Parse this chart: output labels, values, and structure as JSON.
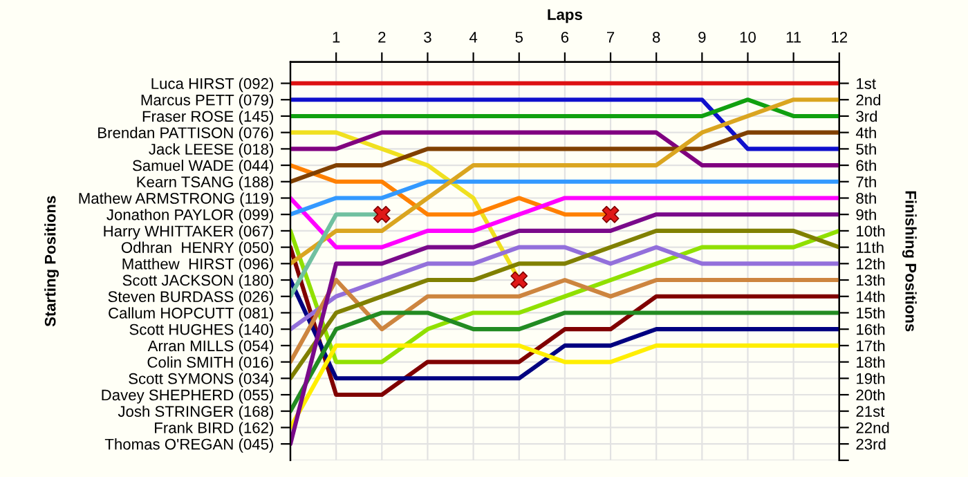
{
  "chart_data": {
    "type": "line",
    "xlabel": "Laps",
    "ylabel": "Finishing Positions",
    "x": [
      0,
      1,
      2,
      3,
      4,
      5,
      6,
      7,
      8,
      9,
      10,
      11,
      12
    ],
    "xlim": [
      0,
      12
    ],
    "xticks": [
      1,
      2,
      3,
      4,
      5,
      6,
      7,
      8,
      9,
      10,
      11,
      12
    ],
    "ylim": [
      24,
      -0.3
    ],
    "annotations": [
      "Starting Positions",
      "Luca HIRST (092)",
      "Marcus PETT (079)",
      "Fraser ROSE (145)",
      "Brendan PATTISON (076)",
      "Jack LEESE (018)",
      "Samuel WADE (044)",
      "Kearn TSANG (188)",
      "Mathew ARMSTRONG (119)",
      "Jonathon PAYLOR (099)",
      "Harry WHITTAKER (067)",
      "Odhran  HENRY (050)",
      "Matthew  HIRST (096)",
      "Scott JACKSON (180)",
      "Steven BURDASS (026)",
      "Callum HOPCUTT (081)",
      "Scott HUGHES (140)",
      "Arran MILLS (054)",
      "Colin SMITH (016)",
      "Scott SYMONS (034)",
      "Davey SHEPHERD (055)",
      "Josh STRINGER (168)",
      "Frank BIRD (162)",
      "Thomas O'REGAN (045)"
    ],
    "yticks": [
      {
        "value": 1,
        "label": "1st"
      },
      {
        "value": 2,
        "label": "2nd"
      },
      {
        "value": 3,
        "label": "3rd"
      },
      {
        "value": 4,
        "label": "4th"
      },
      {
        "value": 5,
        "label": "5th"
      },
      {
        "value": 6,
        "label": "6th"
      },
      {
        "value": 7,
        "label": "7th"
      },
      {
        "value": 8,
        "label": "8th"
      },
      {
        "value": 9,
        "label": "9th"
      },
      {
        "value": 10,
        "label": "10th"
      },
      {
        "value": 11,
        "label": "11th"
      },
      {
        "value": 12,
        "label": "12th"
      },
      {
        "value": 13,
        "label": "13th"
      },
      {
        "value": 14,
        "label": "14th"
      },
      {
        "value": 15,
        "label": "15th"
      },
      {
        "value": 16,
        "label": "16th"
      },
      {
        "value": 17,
        "label": "17th"
      },
      {
        "value": 18,
        "label": "18th"
      },
      {
        "value": 19,
        "label": "19th"
      },
      {
        "value": 20,
        "label": "20th"
      },
      {
        "value": 21,
        "label": "21st"
      },
      {
        "value": 22,
        "label": "22nd"
      },
      {
        "value": 23,
        "label": "23rd"
      },
      {
        "value": 24,
        "label": null
      }
    ],
    "grid": true,
    "marker": "none",
    "line_style": "solid",
    "series": [
      {
        "color": "#dd1111",
        "values": [
          1,
          1,
          1,
          1,
          1,
          1,
          1,
          1,
          1,
          1,
          1,
          1,
          1
        ]
      },
      {
        "color": "#1010cc",
        "values": [
          2,
          2,
          2,
          2,
          2,
          2,
          2,
          2,
          2,
          2,
          5,
          5,
          5
        ]
      },
      {
        "color": "#10a010",
        "values": [
          3,
          3,
          3,
          3,
          3,
          3,
          3,
          3,
          3,
          3,
          2,
          3,
          3
        ]
      },
      {
        "color": "#f0e020",
        "values": [
          4,
          4,
          5,
          6,
          8,
          13,
          null,
          null,
          null,
          null,
          null,
          null,
          null
        ]
      },
      {
        "color": "#800080",
        "values": [
          5,
          5,
          4,
          4,
          4,
          4,
          4,
          4,
          4,
          6,
          6,
          6,
          6
        ]
      },
      {
        "color": "#ff8000",
        "values": [
          6,
          7,
          7,
          9,
          9,
          8,
          9,
          9,
          null,
          null,
          null,
          null,
          null
        ]
      },
      {
        "color": "#804000",
        "values": [
          7,
          6,
          6,
          5,
          5,
          5,
          5,
          5,
          5,
          5,
          4,
          4,
          4
        ]
      },
      {
        "color": "#ff00ff",
        "values": [
          8,
          11,
          11,
          10,
          10,
          9,
          8,
          8,
          8,
          8,
          8,
          8,
          8
        ]
      },
      {
        "color": "#3399ff",
        "values": [
          9,
          8,
          8,
          7,
          7,
          7,
          7,
          7,
          7,
          7,
          7,
          7,
          7
        ]
      },
      {
        "color": "#90e000",
        "values": [
          10,
          18,
          18,
          16,
          15,
          15,
          14,
          13,
          12,
          11,
          11,
          11,
          10
        ]
      },
      {
        "color": "#800000",
        "values": [
          11,
          20,
          20,
          18,
          18,
          18,
          16,
          16,
          14,
          14,
          14,
          14,
          14
        ]
      },
      {
        "color": "#daa520",
        "values": [
          12,
          10,
          10,
          8,
          6,
          6,
          6,
          6,
          6,
          4,
          3,
          2,
          2
        ]
      },
      {
        "color": "#000080",
        "values": [
          13,
          19,
          19,
          19,
          19,
          19,
          17,
          17,
          16,
          16,
          16,
          16,
          16
        ]
      },
      {
        "color": "#70c0a0",
        "values": [
          14,
          9,
          9,
          null,
          null,
          null,
          null,
          null,
          null,
          null,
          null,
          null,
          null
        ]
      },
      {
        "color": "#9370db",
        "values": [
          16,
          14,
          13,
          12,
          12,
          11,
          11,
          12,
          11,
          12,
          12,
          12,
          12
        ]
      },
      {
        "color": "#cd853f",
        "values": [
          18,
          13,
          16,
          14,
          14,
          14,
          13,
          14,
          13,
          13,
          13,
          13,
          13
        ]
      },
      {
        "color": "#808000",
        "values": [
          19,
          15,
          14,
          13,
          13,
          12,
          12,
          11,
          10,
          10,
          10,
          10,
          11
        ]
      },
      {
        "color": "#228b22",
        "values": [
          21,
          16,
          15,
          15,
          16,
          16,
          15,
          15,
          15,
          15,
          15,
          15,
          15
        ]
      },
      {
        "color": "#ffee00",
        "values": [
          22,
          17,
          17,
          17,
          17,
          17,
          18,
          18,
          17,
          17,
          17,
          17,
          17
        ]
      },
      {
        "color": "#7a0a8a",
        "values": [
          23,
          12,
          12,
          11,
          11,
          10,
          10,
          10,
          9,
          9,
          9,
          9,
          9
        ]
      },
      {
        "type": "scatter",
        "marker": "cross",
        "color": "#e01818",
        "x": [
          2,
          5,
          7
        ],
        "values": [
          9,
          13,
          9
        ]
      }
    ]
  }
}
